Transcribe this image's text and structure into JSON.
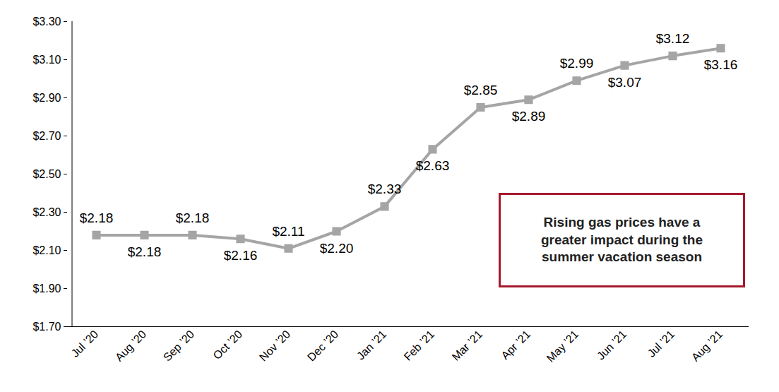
{
  "chart_data": {
    "type": "line",
    "categories": [
      "Jul ’20",
      "Aug ’20",
      "Sep ’20",
      "Oct ’20",
      "Nov ’20",
      "Dec ’20",
      "Jan ’21",
      "Feb ’21",
      "Mar ’21",
      "Apr ’21",
      "May ’21",
      "Jun ’21",
      "Jul ’21",
      "Aug ’21"
    ],
    "values": [
      2.18,
      2.18,
      2.18,
      2.16,
      2.11,
      2.2,
      2.33,
      2.63,
      2.85,
      2.89,
      2.99,
      3.07,
      3.12,
      3.16
    ],
    "value_labels": [
      "$2.18",
      "$2.18",
      "$2.18",
      "$2.16",
      "$2.11",
      "$2.20",
      "$2.33",
      "$2.63",
      "$2.85",
      "$2.89",
      "$2.99",
      "$3.07",
      "$3.12",
      "$3.16"
    ],
    "data_labels": true,
    "color": "#a5a5a5",
    "marker": "square",
    "ylim": [
      1.7,
      3.3
    ],
    "yticks": [
      {
        "value": 1.7,
        "label": "$1.70"
      },
      {
        "value": 1.9,
        "label": "$1.90"
      },
      {
        "value": 2.1,
        "label": "$2.10"
      },
      {
        "value": 2.3,
        "label": "$2.30"
      },
      {
        "value": 2.5,
        "label": "$2.50"
      },
      {
        "value": 2.7,
        "label": "$2.70"
      },
      {
        "value": 2.9,
        "label": "$2.90"
      },
      {
        "value": 3.1,
        "label": "$3.10"
      },
      {
        "value": 3.3,
        "label": "$3.30"
      }
    ],
    "grid": false,
    "annotation": "Rising gas prices have a\ngreater impact during the\nsummer vacation season"
  }
}
